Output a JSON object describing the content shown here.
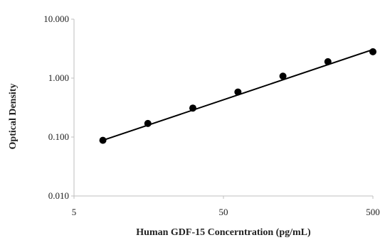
{
  "chart_data": {
    "type": "scatter",
    "title": "",
    "xlabel": "Human GDF-15 Concerntration (pg/mL)",
    "ylabel": "Optical Density",
    "x_scale": "log",
    "y_scale": "log",
    "xlim": [
      5,
      500
    ],
    "ylim": [
      0.01,
      10
    ],
    "x_ticks": [
      5,
      50,
      500
    ],
    "x_tick_labels": [
      "5",
      "50",
      "500"
    ],
    "y_ticks": [
      0.01,
      0.1,
      1,
      10
    ],
    "y_tick_labels": [
      "0.010",
      "0.100",
      "1.000",
      "10.000"
    ],
    "grid": false,
    "legend": false,
    "series": [
      {
        "x": [
          7.8,
          15.6,
          31.2,
          62.5,
          125,
          250,
          500
        ],
        "y": [
          0.088,
          0.17,
          0.31,
          0.58,
          1.08,
          1.9,
          2.8
        ]
      }
    ],
    "fit_line": {
      "x": [
        7.8,
        500
      ],
      "y": [
        0.088,
        3.05
      ]
    },
    "colors": {
      "points": "#000000",
      "line": "#000000",
      "axis": "#bfbfbf"
    }
  }
}
